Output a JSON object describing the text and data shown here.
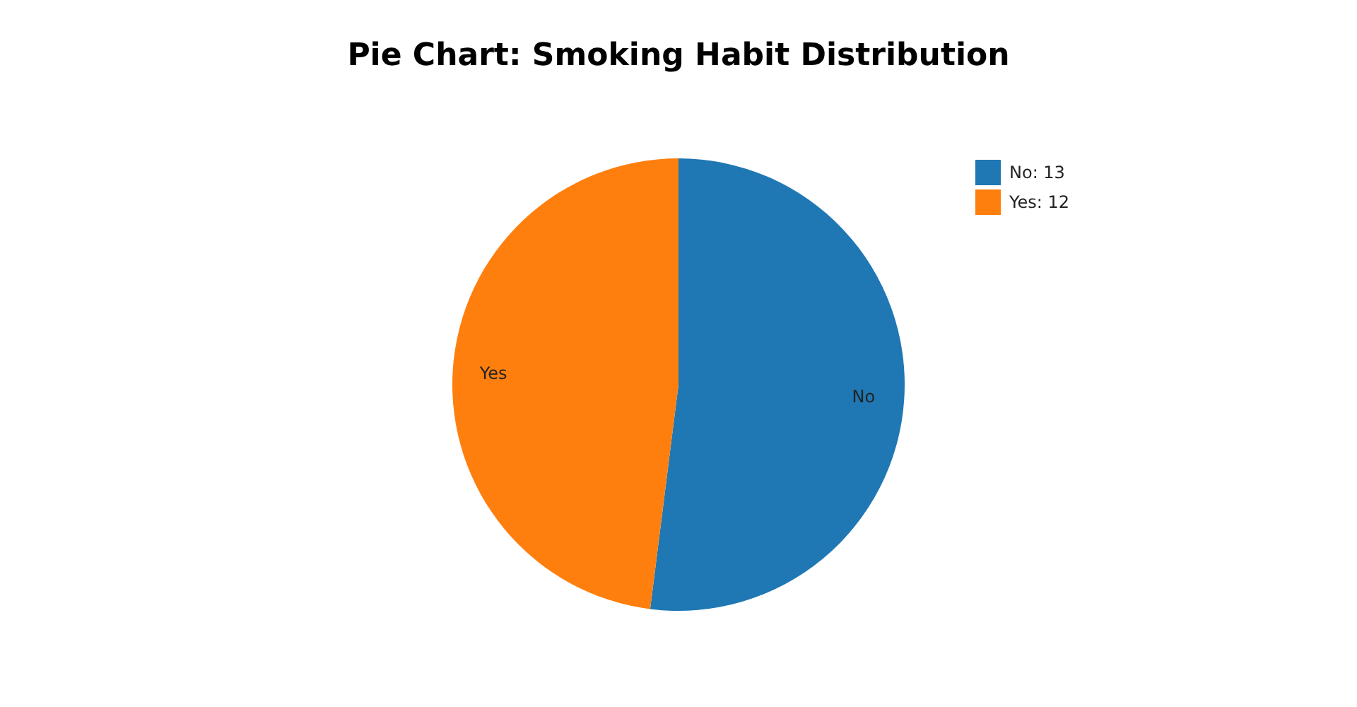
{
  "chart_data": {
    "type": "pie",
    "title": "Pie Chart: Smoking Habit Distribution",
    "categories": [
      "No: 13",
      "Yes: 12"
    ],
    "values": [
      13,
      12
    ],
    "colors": [
      "#1f77b4",
      "#ff7f0e"
    ],
    "legend": "top right",
    "annotations": [
      "No",
      "Yes"
    ]
  }
}
